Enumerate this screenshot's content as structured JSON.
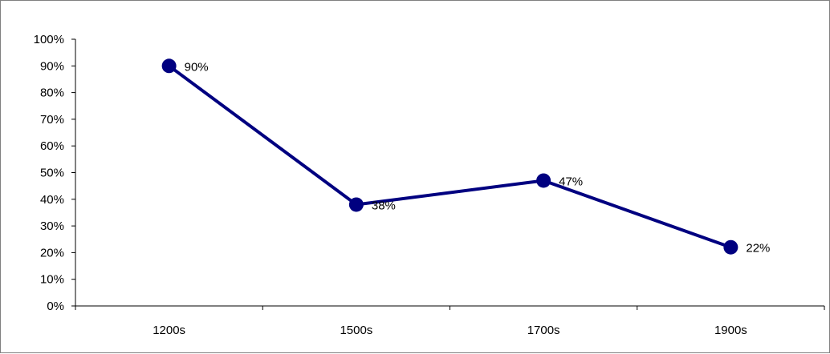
{
  "chart_data": {
    "type": "line",
    "title": "",
    "xlabel": "",
    "ylabel": "",
    "categories": [
      "1200s",
      "1500s",
      "1700s",
      "1900s"
    ],
    "series": [
      {
        "values": [
          90,
          38,
          47,
          22
        ],
        "data_labels": [
          "90%",
          "38%",
          "47%",
          "22%"
        ],
        "color": "#000080"
      }
    ],
    "ylim": [
      0,
      100
    ],
    "y_ticks": [
      "0%",
      "10%",
      "20%",
      "30%",
      "40%",
      "50%",
      "60%",
      "70%",
      "80%",
      "90%",
      "100%"
    ],
    "grid": false,
    "legend": "none"
  }
}
